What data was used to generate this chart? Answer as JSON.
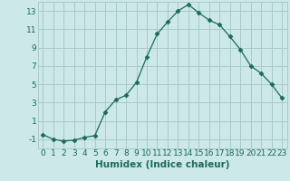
{
  "x": [
    0,
    1,
    2,
    3,
    4,
    5,
    6,
    7,
    8,
    9,
    10,
    11,
    12,
    13,
    14,
    15,
    16,
    17,
    18,
    19,
    20,
    21,
    22,
    23
  ],
  "y": [
    -0.5,
    -1.0,
    -1.2,
    -1.1,
    -0.8,
    -0.6,
    2.0,
    3.3,
    3.8,
    5.2,
    8.0,
    10.5,
    11.8,
    13.0,
    13.7,
    12.8,
    12.0,
    11.5,
    10.2,
    8.8,
    7.0,
    6.2,
    5.0,
    3.5
  ],
  "line_color": "#1a6b5a",
  "marker": "D",
  "marker_size": 2.5,
  "bg_color": "#cce8e8",
  "grid_color": "#aacaca",
  "xlabel": "Humidex (Indice chaleur)",
  "ylim": [
    -2,
    14
  ],
  "yticks": [
    -1,
    1,
    3,
    5,
    7,
    9,
    11,
    13
  ],
  "xticks": [
    0,
    1,
    2,
    3,
    4,
    5,
    6,
    7,
    8,
    9,
    10,
    11,
    12,
    13,
    14,
    15,
    16,
    17,
    18,
    19,
    20,
    21,
    22,
    23
  ],
  "font_color": "#1a6b5a",
  "tick_fontsize": 6.5,
  "xlabel_fontsize": 7.5
}
